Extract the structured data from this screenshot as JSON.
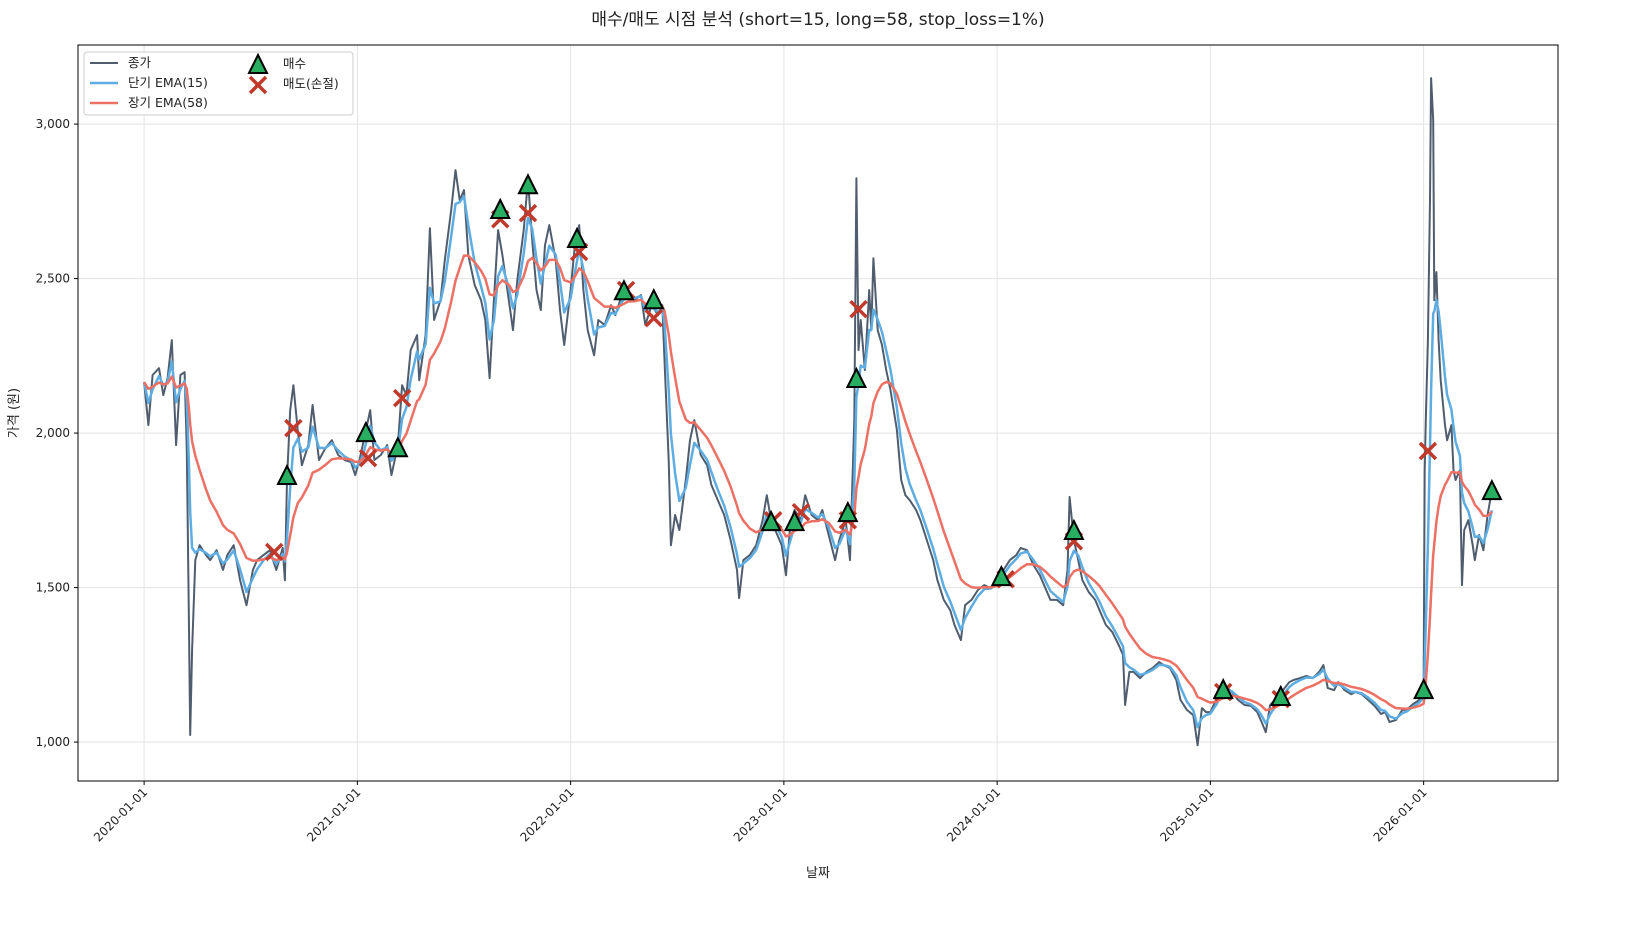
{
  "chart_data": {
    "type": "line",
    "title": "매수/매도 시점 분석 (short=15, long=58, stop_loss=1%)",
    "xlabel": "날짜",
    "ylabel": "가격 (원)",
    "ylim": [
      874,
      3256
    ],
    "xlim": [
      2019.69,
      2026.63
    ],
    "grid": true,
    "legend_position": "top-left",
    "x_ticks": [
      {
        "value": 2020,
        "label": "2020-01-01"
      },
      {
        "value": 2021,
        "label": "2021-01-01"
      },
      {
        "value": 2022,
        "label": "2022-01-01"
      },
      {
        "value": 2023,
        "label": "2023-01-01"
      },
      {
        "value": 2024,
        "label": "2024-01-01"
      },
      {
        "value": 2025,
        "label": "2025-01-01"
      },
      {
        "value": 2026,
        "label": "2026-01-01"
      }
    ],
    "y_ticks": [
      {
        "value": 1000,
        "label": "1,000"
      },
      {
        "value": 1500,
        "label": "1,500"
      },
      {
        "value": 2000,
        "label": "2,000"
      },
      {
        "value": 2500,
        "label": "2,500"
      },
      {
        "value": 3000,
        "label": "3,000"
      }
    ],
    "legend": {
      "close": "종가",
      "ema_short": "단기 EMA(15)",
      "ema_long": "장기 EMA(58)",
      "buy": "매수",
      "sell": "매도(손절)"
    },
    "ema_spans": {
      "short": 15,
      "long": 58
    },
    "colors": {
      "close": "#4f5d6e",
      "ema_short": "#5dade2",
      "ema_long": "#ec7063",
      "buy": "#27ae60",
      "sell": "#c0392b"
    },
    "close": [
      [
        2020.0,
        2165
      ],
      [
        2020.02,
        2026
      ],
      [
        2020.04,
        2188
      ],
      [
        2020.07,
        2210
      ],
      [
        2020.09,
        2123
      ],
      [
        2020.11,
        2178
      ],
      [
        2020.13,
        2301
      ],
      [
        2020.15,
        1961
      ],
      [
        2020.17,
        2188
      ],
      [
        2020.19,
        2197
      ],
      [
        2020.2,
        1945
      ],
      [
        2020.21,
        1395
      ],
      [
        2020.216,
        1023
      ],
      [
        2020.225,
        1298
      ],
      [
        2020.24,
        1589
      ],
      [
        2020.26,
        1637
      ],
      [
        2020.29,
        1605
      ],
      [
        2020.31,
        1589
      ],
      [
        2020.34,
        1621
      ],
      [
        2020.37,
        1557
      ],
      [
        2020.39,
        1605
      ],
      [
        2020.42,
        1637
      ],
      [
        2020.45,
        1524
      ],
      [
        2020.48,
        1443
      ],
      [
        2020.51,
        1557
      ],
      [
        2020.53,
        1589
      ],
      [
        2020.56,
        1605
      ],
      [
        2020.59,
        1621
      ],
      [
        2020.62,
        1557
      ],
      [
        2020.65,
        1628
      ],
      [
        2020.66,
        1524
      ],
      [
        2020.67,
        1848
      ],
      [
        2020.685,
        2074
      ],
      [
        2020.7,
        2155
      ],
      [
        2020.72,
        2010
      ],
      [
        2020.74,
        1896
      ],
      [
        2020.77,
        1961
      ],
      [
        2020.79,
        2091
      ],
      [
        2020.82,
        1913
      ],
      [
        2020.85,
        1951
      ],
      [
        2020.88,
        1977
      ],
      [
        2020.91,
        1929
      ],
      [
        2020.94,
        1913
      ],
      [
        2020.97,
        1906
      ],
      [
        2020.99,
        1864
      ],
      [
        2021.01,
        1913
      ],
      [
        2021.03,
        1977
      ],
      [
        2021.06,
        2074
      ],
      [
        2021.08,
        1913
      ],
      [
        2021.11,
        1929
      ],
      [
        2021.14,
        1961
      ],
      [
        2021.16,
        1864
      ],
      [
        2021.19,
        1961
      ],
      [
        2021.21,
        2155
      ],
      [
        2021.23,
        2123
      ],
      [
        2021.25,
        2269
      ],
      [
        2021.28,
        2317
      ],
      [
        2021.29,
        2171
      ],
      [
        2021.32,
        2317
      ],
      [
        2021.34,
        2663
      ],
      [
        2021.36,
        2366
      ],
      [
        2021.39,
        2430
      ],
      [
        2021.41,
        2560
      ],
      [
        2021.44,
        2722
      ],
      [
        2021.46,
        2851
      ],
      [
        2021.48,
        2754
      ],
      [
        2021.5,
        2786
      ],
      [
        2021.52,
        2576
      ],
      [
        2021.55,
        2479
      ],
      [
        2021.58,
        2430
      ],
      [
        2021.6,
        2366
      ],
      [
        2021.62,
        2178
      ],
      [
        2021.64,
        2430
      ],
      [
        2021.66,
        2657
      ],
      [
        2021.68,
        2576
      ],
      [
        2021.71,
        2430
      ],
      [
        2021.73,
        2333
      ],
      [
        2021.75,
        2495
      ],
      [
        2021.78,
        2657
      ],
      [
        2021.8,
        2819
      ],
      [
        2021.82,
        2624
      ],
      [
        2021.84,
        2463
      ],
      [
        2021.86,
        2398
      ],
      [
        2021.88,
        2608
      ],
      [
        2021.9,
        2673
      ],
      [
        2021.93,
        2560
      ],
      [
        2021.95,
        2398
      ],
      [
        2021.97,
        2285
      ],
      [
        2022.0,
        2463
      ],
      [
        2022.02,
        2608
      ],
      [
        2022.04,
        2673
      ],
      [
        2022.06,
        2463
      ],
      [
        2022.08,
        2333
      ],
      [
        2022.11,
        2252
      ],
      [
        2022.13,
        2366
      ],
      [
        2022.16,
        2350
      ],
      [
        2022.19,
        2414
      ],
      [
        2022.21,
        2382
      ],
      [
        2022.24,
        2447
      ],
      [
        2022.27,
        2463
      ],
      [
        2022.3,
        2430
      ],
      [
        2022.33,
        2447
      ],
      [
        2022.35,
        2350
      ],
      [
        2022.38,
        2414
      ],
      [
        2022.41,
        2382
      ],
      [
        2022.43,
        2414
      ],
      [
        2022.44,
        2236
      ],
      [
        2022.46,
        1913
      ],
      [
        2022.47,
        1637
      ],
      [
        2022.49,
        1735
      ],
      [
        2022.51,
        1686
      ],
      [
        2022.54,
        1848
      ],
      [
        2022.56,
        1977
      ],
      [
        2022.58,
        2042
      ],
      [
        2022.61,
        1929
      ],
      [
        2022.64,
        1896
      ],
      [
        2022.66,
        1832
      ],
      [
        2022.69,
        1783
      ],
      [
        2022.72,
        1735
      ],
      [
        2022.75,
        1654
      ],
      [
        2022.78,
        1557
      ],
      [
        2022.79,
        1466
      ],
      [
        2022.81,
        1589
      ],
      [
        2022.84,
        1605
      ],
      [
        2022.87,
        1637
      ],
      [
        2022.9,
        1718
      ],
      [
        2022.92,
        1799
      ],
      [
        2022.94,
        1718
      ],
      [
        2022.96,
        1686
      ],
      [
        2022.99,
        1637
      ],
      [
        2023.01,
        1540
      ],
      [
        2023.03,
        1702
      ],
      [
        2023.05,
        1751
      ],
      [
        2023.08,
        1718
      ],
      [
        2023.1,
        1799
      ],
      [
        2023.13,
        1735
      ],
      [
        2023.16,
        1718
      ],
      [
        2023.18,
        1751
      ],
      [
        2023.21,
        1670
      ],
      [
        2023.24,
        1589
      ],
      [
        2023.26,
        1654
      ],
      [
        2023.29,
        1718
      ],
      [
        2023.31,
        1589
      ],
      [
        2023.33,
        2042
      ],
      [
        2023.34,
        2825
      ],
      [
        2023.35,
        2269
      ],
      [
        2023.36,
        2366
      ],
      [
        2023.38,
        2204
      ],
      [
        2023.4,
        2463
      ],
      [
        2023.41,
        2333
      ],
      [
        2023.42,
        2566
      ],
      [
        2023.44,
        2333
      ],
      [
        2023.46,
        2285
      ],
      [
        2023.48,
        2204
      ],
      [
        2023.5,
        2139
      ],
      [
        2023.53,
        2010
      ],
      [
        2023.55,
        1848
      ],
      [
        2023.57,
        1799
      ],
      [
        2023.59,
        1783
      ],
      [
        2023.62,
        1751
      ],
      [
        2023.64,
        1718
      ],
      [
        2023.67,
        1654
      ],
      [
        2023.7,
        1589
      ],
      [
        2023.72,
        1524
      ],
      [
        2023.75,
        1460
      ],
      [
        2023.78,
        1427
      ],
      [
        2023.8,
        1379
      ],
      [
        2023.83,
        1330
      ],
      [
        2023.85,
        1443
      ],
      [
        2023.88,
        1460
      ],
      [
        2023.91,
        1492
      ],
      [
        2023.94,
        1508
      ],
      [
        2023.97,
        1498
      ],
      [
        2024.0,
        1524
      ],
      [
        2024.03,
        1557
      ],
      [
        2024.06,
        1589
      ],
      [
        2024.09,
        1605
      ],
      [
        2024.11,
        1628
      ],
      [
        2024.14,
        1621
      ],
      [
        2024.17,
        1573
      ],
      [
        2024.2,
        1540
      ],
      [
        2024.23,
        1492
      ],
      [
        2024.25,
        1460
      ],
      [
        2024.28,
        1460
      ],
      [
        2024.31,
        1443
      ],
      [
        2024.33,
        1557
      ],
      [
        2024.34,
        1793
      ],
      [
        2024.36,
        1654
      ],
      [
        2024.38,
        1589
      ],
      [
        2024.4,
        1524
      ],
      [
        2024.43,
        1485
      ],
      [
        2024.46,
        1460
      ],
      [
        2024.48,
        1427
      ],
      [
        2024.51,
        1379
      ],
      [
        2024.54,
        1356
      ],
      [
        2024.57,
        1314
      ],
      [
        2024.59,
        1282
      ],
      [
        2024.6,
        1120
      ],
      [
        2024.62,
        1227
      ],
      [
        2024.64,
        1227
      ],
      [
        2024.67,
        1207
      ],
      [
        2024.7,
        1227
      ],
      [
        2024.73,
        1240
      ],
      [
        2024.76,
        1259
      ],
      [
        2024.78,
        1249
      ],
      [
        2024.81,
        1240
      ],
      [
        2024.84,
        1201
      ],
      [
        2024.86,
        1136
      ],
      [
        2024.89,
        1104
      ],
      [
        2024.92,
        1087
      ],
      [
        2024.94,
        990
      ],
      [
        2024.96,
        1110
      ],
      [
        2024.98,
        1097
      ],
      [
        2025.0,
        1097
      ],
      [
        2025.03,
        1142
      ],
      [
        2025.05,
        1184
      ],
      [
        2025.08,
        1175
      ],
      [
        2025.1,
        1162
      ],
      [
        2025.13,
        1136
      ],
      [
        2025.16,
        1120
      ],
      [
        2025.19,
        1117
      ],
      [
        2025.22,
        1097
      ],
      [
        2025.24,
        1065
      ],
      [
        2025.26,
        1032
      ],
      [
        2025.28,
        1120
      ],
      [
        2025.31,
        1142
      ],
      [
        2025.34,
        1168
      ],
      [
        2025.37,
        1194
      ],
      [
        2025.39,
        1201
      ],
      [
        2025.42,
        1207
      ],
      [
        2025.45,
        1214
      ],
      [
        2025.48,
        1207
      ],
      [
        2025.51,
        1227
      ],
      [
        2025.53,
        1249
      ],
      [
        2025.55,
        1175
      ],
      [
        2025.58,
        1168
      ],
      [
        2025.6,
        1194
      ],
      [
        2025.63,
        1168
      ],
      [
        2025.66,
        1155
      ],
      [
        2025.68,
        1162
      ],
      [
        2025.71,
        1155
      ],
      [
        2025.74,
        1136
      ],
      [
        2025.77,
        1117
      ],
      [
        2025.8,
        1091
      ],
      [
        2025.82,
        1097
      ],
      [
        2025.84,
        1065
      ],
      [
        2025.87,
        1071
      ],
      [
        2025.9,
        1104
      ],
      [
        2025.92,
        1104
      ],
      [
        2025.95,
        1123
      ],
      [
        2025.98,
        1136
      ],
      [
        2026.0,
        1162
      ],
      [
        2026.005,
        1880
      ],
      [
        2026.01,
        2042
      ],
      [
        2026.02,
        2301
      ],
      [
        2026.03,
        2754
      ],
      [
        2026.035,
        3149
      ],
      [
        2026.045,
        3013
      ],
      [
        2026.05,
        2430
      ],
      [
        2026.06,
        2521
      ],
      [
        2026.07,
        2301
      ],
      [
        2026.08,
        2171
      ],
      [
        2026.1,
        2026
      ],
      [
        2026.11,
        1977
      ],
      [
        2026.13,
        2026
      ],
      [
        2026.14,
        1880
      ],
      [
        2026.15,
        1848
      ],
      [
        2026.17,
        1880
      ],
      [
        2026.18,
        1508
      ],
      [
        2026.19,
        1686
      ],
      [
        2026.21,
        1718
      ],
      [
        2026.23,
        1637
      ],
      [
        2026.24,
        1589
      ],
      [
        2026.26,
        1670
      ],
      [
        2026.28,
        1621
      ],
      [
        2026.3,
        1735
      ],
      [
        2026.32,
        1815
      ]
    ],
    "buy_signals": [
      [
        2020.67,
        1861
      ],
      [
        2021.04,
        2000
      ],
      [
        2021.19,
        1951
      ],
      [
        2021.67,
        2722
      ],
      [
        2021.8,
        2802
      ],
      [
        2022.03,
        2628
      ],
      [
        2022.25,
        2459
      ],
      [
        2022.39,
        2430
      ],
      [
        2022.94,
        1712
      ],
      [
        2023.05,
        1712
      ],
      [
        2023.3,
        1741
      ],
      [
        2023.34,
        2175
      ],
      [
        2024.02,
        1534
      ],
      [
        2024.36,
        1683
      ],
      [
        2025.06,
        1168
      ],
      [
        2025.33,
        1146
      ],
      [
        2026.0,
        1168
      ],
      [
        2026.32,
        1812
      ]
    ],
    "sell_signals": [
      [
        2020.61,
        1615
      ],
      [
        2020.7,
        2016
      ],
      [
        2021.05,
        1919
      ],
      [
        2021.21,
        2113
      ],
      [
        2021.67,
        2692
      ],
      [
        2021.8,
        2712
      ],
      [
        2022.04,
        2586
      ],
      [
        2022.26,
        2463
      ],
      [
        2022.39,
        2372
      ],
      [
        2022.95,
        1718
      ],
      [
        2023.08,
        1744
      ],
      [
        2023.3,
        1718
      ],
      [
        2023.35,
        2401
      ],
      [
        2024.04,
        1527
      ],
      [
        2024.36,
        1650
      ],
      [
        2025.06,
        1162
      ],
      [
        2025.33,
        1139
      ],
      [
        2026.02,
        1942
      ]
    ]
  }
}
